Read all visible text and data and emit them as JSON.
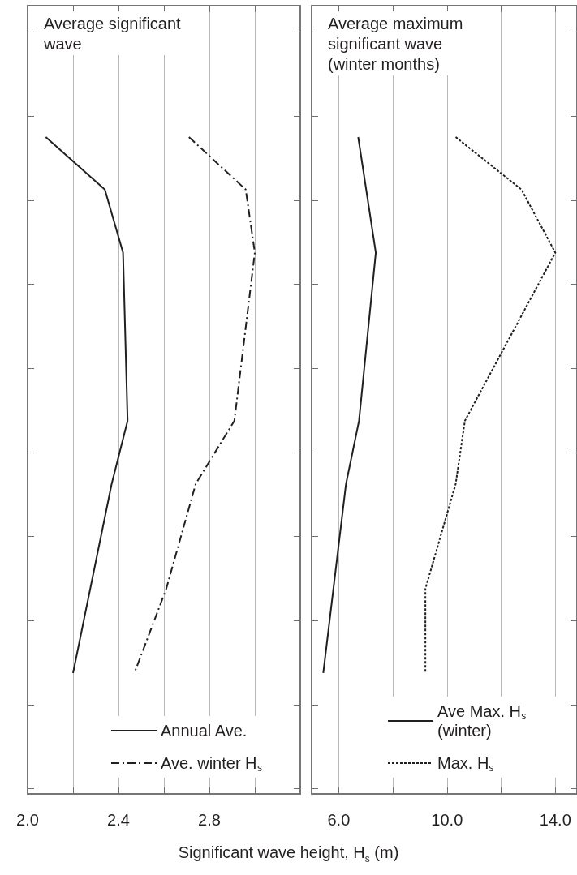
{
  "chart_data": [
    {
      "type": "line",
      "title": "Average significant wave",
      "xlabel": "Significant wave height, H$_{s}$ (m)",
      "orientation": "horizontal",
      "legend": "bottom right",
      "grid": "x",
      "tick_labels": "x",
      "categories": [
        null,
        null,
        null,
        null,
        null,
        null,
        null,
        null,
        null,
        null,
        null,
        null,
        null,
        null,
        null,
        null,
        null,
        null,
        null,
        null,
        null,
        null,
        null,
        null,
        null,
        null,
        null,
        null,
        null,
        null,
        null,
        null,
        null,
        null,
        null,
        null,
        null,
        null,
        null,
        null,
        null,
        null,
        null,
        null,
        null,
        null,
        null,
        null,
        null,
        null,
        null,
        null,
        null,
        null,
        null,
        null,
        null,
        null,
        null,
        null,
        null,
        null,
        null,
        null,
        null,
        null,
        null,
        null,
        null,
        null,
        null,
        null,
        null,
        null,
        null
      ],
      "xlim": [
        2.0,
        3.2
      ],
      "xticks": [
        {
          "value": 2.0,
          "label": "2.0"
        },
        {
          "value": 2.2,
          "label": null
        },
        {
          "value": 2.4,
          "label": "2.4"
        },
        {
          "value": 2.6,
          "label": null
        },
        {
          "value": 2.8,
          "label": "2.8"
        },
        {
          "value": 3.0,
          "label": null
        }
      ],
      "series": [
        {
          "name": "Annual Ave.",
          "color": "#231f20",
          "line_style": "solid",
          "values": [
            null,
            null,
            null,
            null,
            null,
            null,
            null,
            null,
            null,
            null,
            null,
            null,
            2.08,
            null,
            null,
            null,
            null,
            2.34,
            null,
            null,
            null,
            null,
            null,
            2.42,
            null,
            null,
            null,
            null,
            null,
            null,
            null,
            null,
            null,
            null,
            null,
            null,
            null,
            null,
            null,
            2.44,
            null,
            null,
            null,
            null,
            null,
            2.37,
            null,
            null,
            null,
            null,
            null,
            null,
            null,
            null,
            null,
            null,
            null,
            null,
            null,
            null,
            null,
            null,
            null,
            2.2,
            null,
            null,
            null,
            null,
            null,
            null,
            null,
            null,
            null,
            null,
            null
          ]
        },
        {
          "name": "Ave. winter H$_{s}$",
          "color": "#231f20",
          "line_style": "dashed",
          "values": [
            null,
            null,
            null,
            null,
            null,
            null,
            null,
            null,
            null,
            null,
            null,
            null,
            2.71,
            null,
            null,
            null,
            null,
            2.96,
            null,
            null,
            null,
            null,
            null,
            3.0,
            null,
            null,
            null,
            null,
            null,
            null,
            null,
            null,
            null,
            null,
            null,
            null,
            null,
            null,
            null,
            2.91,
            null,
            null,
            null,
            null,
            null,
            2.74,
            null,
            null,
            null,
            null,
            null,
            null,
            null,
            null,
            null,
            2.61,
            null,
            null,
            null,
            null,
            null,
            null,
            null,
            2.47,
            null,
            null,
            null,
            null,
            null,
            null,
            null,
            null,
            null,
            null,
            null
          ]
        }
      ]
    },
    {
      "type": "line",
      "title": "Average maximum significant wave (winter months)",
      "orientation": "horizontal",
      "legend": "bottom right",
      "grid": "x",
      "tick_labels": "x",
      "categories": [
        null,
        null,
        null,
        null,
        null,
        null,
        null,
        null,
        null,
        null,
        null,
        null,
        null,
        null,
        null,
        null,
        null,
        null,
        null,
        null,
        null,
        null,
        null,
        null,
        null,
        null,
        null,
        null,
        null,
        null,
        null,
        null,
        null,
        null,
        null,
        null,
        null,
        null,
        null,
        null,
        null,
        null,
        null,
        null,
        null,
        null,
        null,
        null,
        null,
        null,
        null,
        null,
        null,
        null,
        null,
        null,
        null,
        null,
        null,
        null,
        null,
        null,
        null,
        null,
        null,
        null,
        null,
        null,
        null,
        null,
        null,
        null,
        null,
        null,
        null
      ],
      "xlim": [
        5.0,
        14.8
      ],
      "xticks": [
        {
          "value": 6.0,
          "label": "6.0"
        },
        {
          "value": 8.0,
          "label": null
        },
        {
          "value": 10.0,
          "label": "10.0"
        },
        {
          "value": 12.0,
          "label": null
        },
        {
          "value": 14.0,
          "label": "14.0"
        }
      ],
      "series": [
        {
          "name": "Ave Max. H$_{s}$ (winter)",
          "color": "#231f20",
          "line_style": "solid",
          "values": [
            null,
            null,
            null,
            null,
            null,
            null,
            null,
            null,
            null,
            null,
            null,
            null,
            6.72,
            null,
            null,
            null,
            null,
            null,
            null,
            null,
            null,
            null,
            null,
            7.37,
            null,
            null,
            null,
            null,
            null,
            null,
            null,
            null,
            null,
            null,
            null,
            null,
            null,
            null,
            null,
            6.75,
            null,
            null,
            null,
            null,
            null,
            6.27,
            null,
            null,
            null,
            null,
            null,
            null,
            null,
            null,
            null,
            null,
            null,
            null,
            null,
            null,
            null,
            null,
            null,
            5.43,
            null,
            null,
            null,
            null,
            null,
            null,
            null,
            null,
            null,
            null,
            null
          ]
        },
        {
          "name": "Max. H$_{s}$",
          "color": "#231f20",
          "line_style": "dotted",
          "values": [
            null,
            null,
            null,
            null,
            null,
            null,
            null,
            null,
            null,
            null,
            null,
            null,
            10.32,
            null,
            null,
            null,
            null,
            12.75,
            null,
            null,
            null,
            null,
            null,
            14.0,
            null,
            null,
            null,
            null,
            null,
            null,
            null,
            null,
            null,
            null,
            null,
            null,
            null,
            null,
            null,
            10.66,
            null,
            null,
            null,
            null,
            null,
            10.32,
            null,
            null,
            null,
            null,
            null,
            null,
            null,
            null,
            null,
            9.2,
            null,
            null,
            null,
            null,
            null,
            null,
            null,
            9.2,
            null,
            null,
            null,
            null,
            null,
            null,
            null,
            null,
            null,
            null,
            null
          ]
        }
      ]
    }
  ]
}
